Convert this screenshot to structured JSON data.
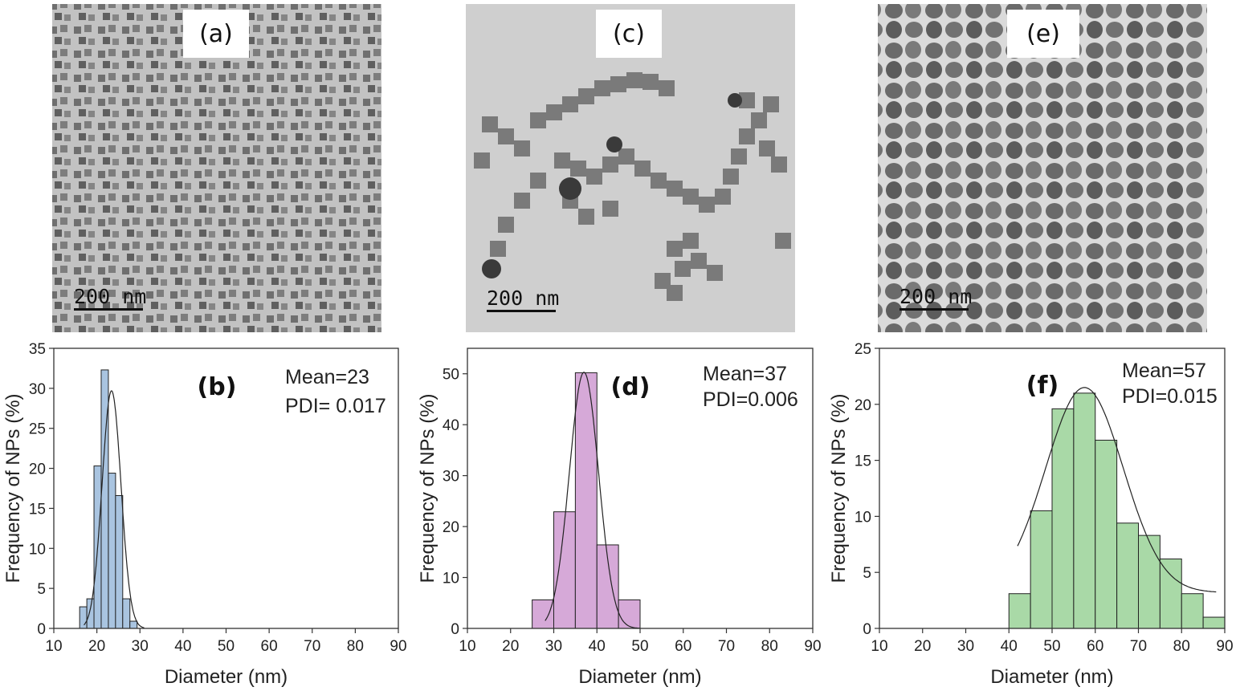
{
  "micrographs": [
    {
      "label": "(a)",
      "scale_bar": "200 nm",
      "tone": "#8a8a8a",
      "bg": "#c6c6c6"
    },
    {
      "label": "(c)",
      "scale_bar": "200 nm",
      "tone": "#7b7b7b",
      "bg": "#cfcfcf"
    },
    {
      "label": "(e)",
      "scale_bar": "200 nm",
      "tone": "#6e6e6e",
      "bg": "#d3d3d3"
    }
  ],
  "chart_data": [
    {
      "type": "bar",
      "panel_label": "(b)",
      "annotations": [
        "Mean=23",
        "PDI= 0.017"
      ],
      "xlabel": "Diameter (nm)",
      "ylabel": "Frequency of NPs (%)",
      "xlim": [
        10,
        90
      ],
      "ylim": [
        0,
        35
      ],
      "xticks": [
        10,
        20,
        30,
        40,
        50,
        60,
        70,
        80,
        90
      ],
      "yticks": [
        0,
        5,
        10,
        15,
        20,
        25,
        30,
        35
      ],
      "bin_width": 1.67,
      "bins": [
        16.0,
        17.67,
        19.33,
        21.0,
        22.67,
        24.33,
        26.0,
        27.67,
        29.33
      ],
      "values": [
        2.7,
        3.7,
        20.3,
        32.3,
        19.4,
        16.6,
        3.7,
        0.9,
        0
      ],
      "bar_color": "#a9c4e0",
      "fit": {
        "type": "gaussian",
        "mean": 23.4,
        "sigma": 2.2,
        "peak": 29.7,
        "range": [
          17,
          31
        ]
      },
      "grid": false
    },
    {
      "type": "bar",
      "panel_label": "(d)",
      "annotations": [
        "Mean=37",
        "PDI=0.006"
      ],
      "xlabel": "Diameter (nm)",
      "ylabel": "Frequency of NPs (%)",
      "xlim": [
        10,
        90
      ],
      "ylim": [
        0,
        55
      ],
      "xticks": [
        10,
        20,
        30,
        40,
        50,
        60,
        70,
        80,
        90
      ],
      "yticks": [
        0,
        10,
        20,
        30,
        40,
        50
      ],
      "bin_width": 5,
      "bins": [
        25,
        30,
        35,
        40,
        45
      ],
      "values": [
        5.6,
        22.9,
        50.2,
        16.4,
        5.6
      ],
      "bar_color": "#d6a9d8",
      "fit": {
        "type": "gaussian",
        "mean": 37,
        "sigma": 3.4,
        "peak": 50.3,
        "range": [
          28,
          50
        ]
      },
      "grid": false
    },
    {
      "type": "bar",
      "panel_label": "(f)",
      "annotations": [
        "Mean=57",
        "PDI=0.015"
      ],
      "xlabel": "Diameter (nm)",
      "ylabel": "Frequency of NPs (%)",
      "xlim": [
        10,
        90
      ],
      "ylim": [
        0,
        25
      ],
      "xticks": [
        10,
        20,
        30,
        40,
        50,
        60,
        70,
        80,
        90
      ],
      "yticks": [
        0,
        5,
        10,
        15,
        20,
        25
      ],
      "bin_width": 5,
      "bins": [
        40,
        45,
        50,
        55,
        60,
        65,
        70,
        75,
        80,
        85
      ],
      "values": [
        3.1,
        10.5,
        19.6,
        21.0,
        16.8,
        9.4,
        8.3,
        6.2,
        3.1,
        1.0
      ],
      "bar_color": "#a9d9a7",
      "fit": {
        "type": "gaussian",
        "mean": 57.5,
        "sigma": 9.0,
        "peak": 21.5,
        "range": [
          42,
          88
        ],
        "baseline": 3.2
      },
      "grid": false
    }
  ]
}
